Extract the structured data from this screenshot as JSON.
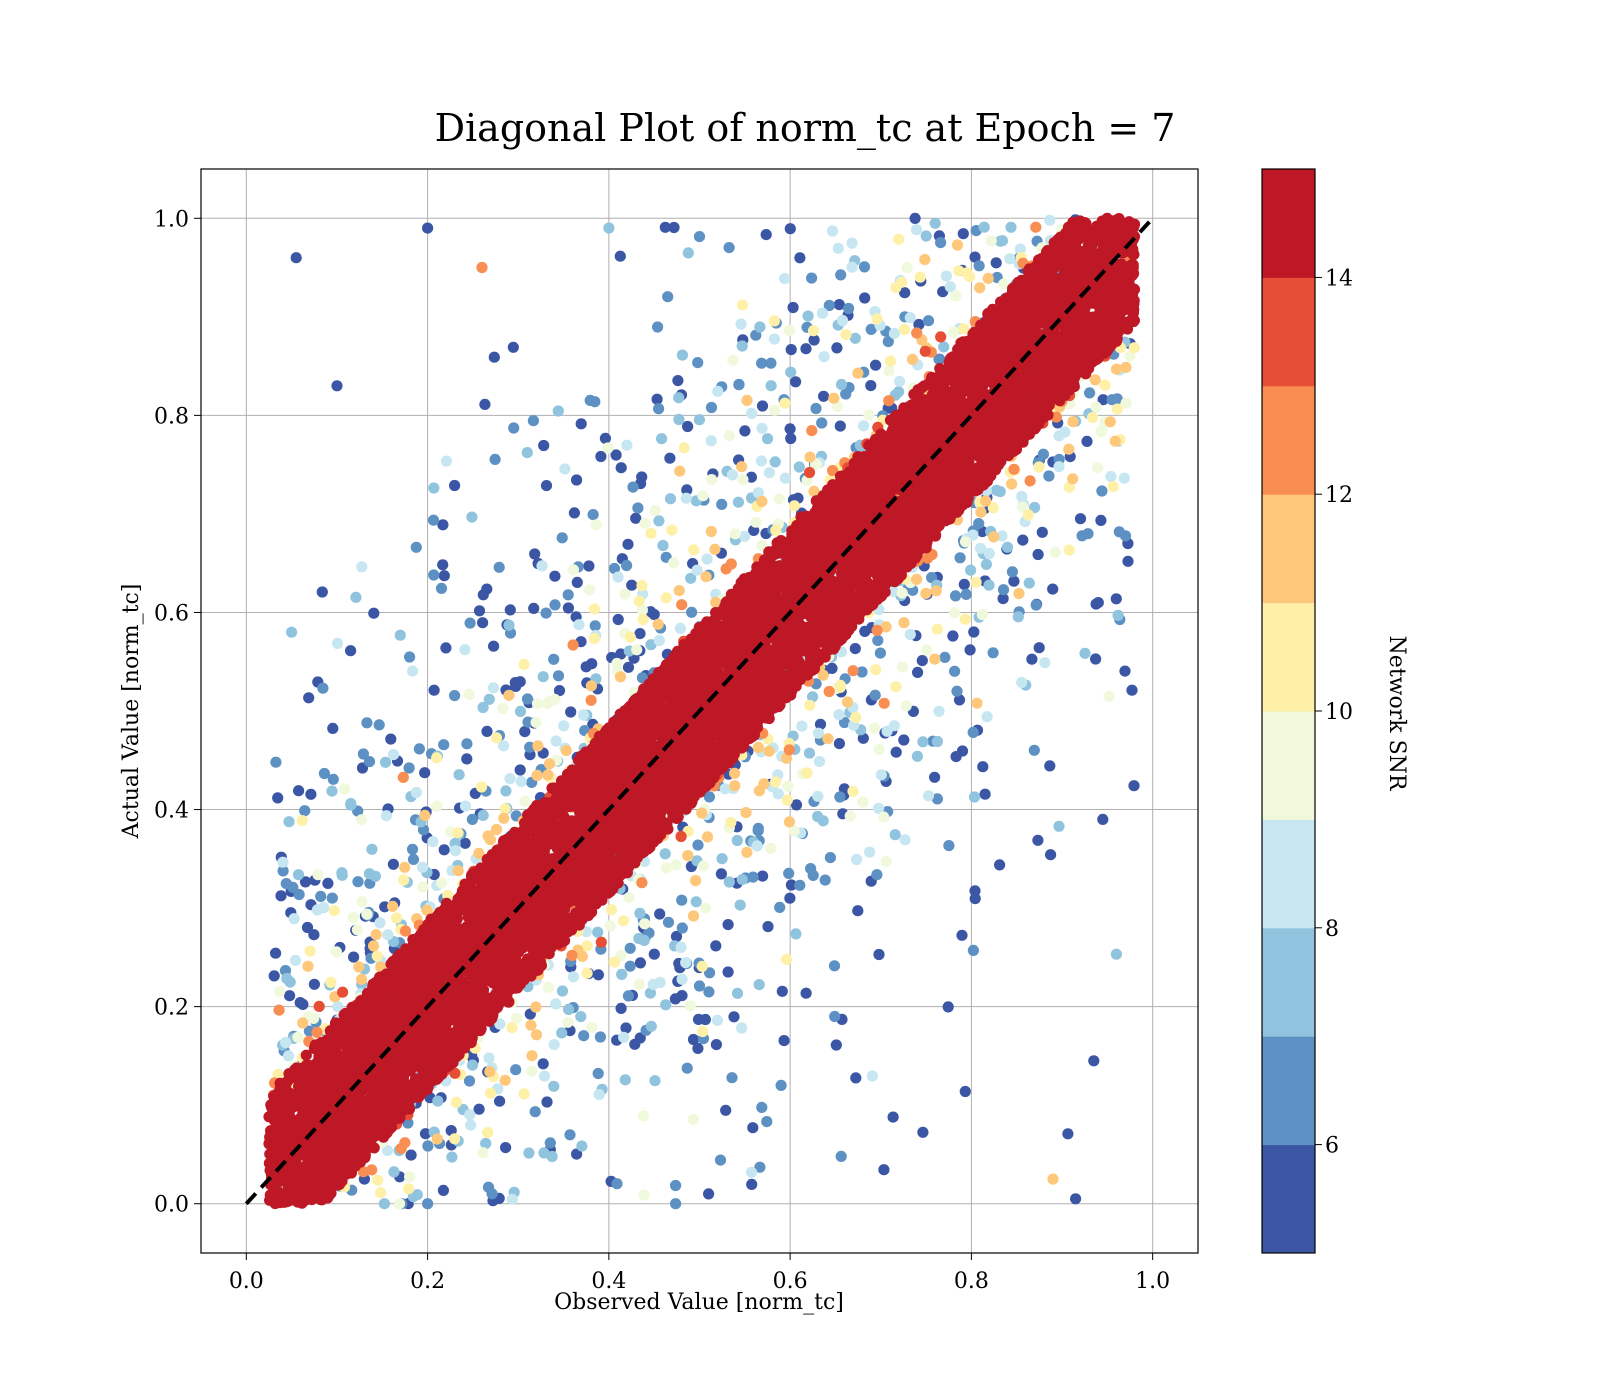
{
  "chart_data": {
    "type": "scatter",
    "title": "Diagonal Plot of norm_tc at Epoch = 7",
    "xlabel": "Observed Value [norm_tc]",
    "ylabel": "Actual Value [norm_tc]",
    "xlim": [
      -0.05,
      1.05
    ],
    "ylim": [
      -0.05,
      1.05
    ],
    "xticks": [
      0.0,
      0.2,
      0.4,
      0.6,
      0.8,
      1.0
    ],
    "yticks": [
      0.0,
      0.2,
      0.4,
      0.6,
      0.8,
      1.0
    ],
    "xtick_labels": [
      "0.0",
      "0.2",
      "0.4",
      "0.6",
      "0.8",
      "1.0"
    ],
    "ytick_labels": [
      "0.0",
      "0.2",
      "0.4",
      "0.6",
      "0.8",
      "1.0"
    ],
    "grid": true,
    "reference_line": {
      "style": "dashed",
      "color": "#000000",
      "from": [
        0.0,
        0.0
      ],
      "to": [
        1.0,
        1.0
      ]
    },
    "colorbar": {
      "label": "Network SNR",
      "range": [
        5,
        15
      ],
      "ticks": [
        6,
        8,
        10,
        12,
        14
      ],
      "tick_labels": [
        "6",
        "8",
        "10",
        "12",
        "14"
      ],
      "colors": [
        "#313695",
        "#4575b4",
        "#74add1",
        "#abd9e9",
        "#e0f3f8",
        "#ffffbf",
        "#fee090",
        "#fdae61",
        "#f46d43",
        "#d73027",
        "#a50026"
      ],
      "bins": 10
    },
    "point_description": "Dense band of high-SNR (about 14-15) points along y = x with half-width about 0.06-0.08; lower-SNR points (5-12) scattered progressively farther from the diagonal out to the plot edges; all values clipped to [0, 1]",
    "sample_points": [
      {
        "x": 0.055,
        "y": 0.96,
        "snr": 5.3
      },
      {
        "x": 0.1,
        "y": 0.83,
        "snr": 5.3
      },
      {
        "x": 0.94,
        "y": 0.61,
        "snr": 5.3
      },
      {
        "x": 0.915,
        "y": 0.005,
        "snr": 5.3
      },
      {
        "x": 0.89,
        "y": 0.025,
        "snr": 11.5
      },
      {
        "x": 0.05,
        "y": 0.58,
        "snr": 7.5
      },
      {
        "x": 0.935,
        "y": 0.145,
        "snr": 5.3
      },
      {
        "x": 0.03,
        "y": 0.11,
        "snr": 13.5
      },
      {
        "x": 0.26,
        "y": 0.95,
        "snr": 12.5
      },
      {
        "x": 0.945,
        "y": 0.39,
        "snr": 5.3
      },
      {
        "x": 0.4,
        "y": 0.99,
        "snr": 7.5
      },
      {
        "x": 0.2,
        "y": 0.99,
        "snr": 5.3
      }
    ]
  }
}
